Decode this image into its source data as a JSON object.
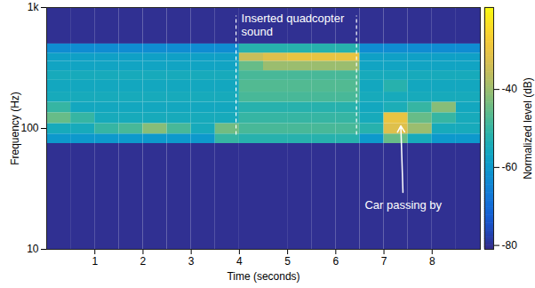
{
  "chart_data": {
    "type": "heatmap",
    "x_label": "Time (seconds)",
    "y_label": "Frequency (Hz)",
    "xlim": [
      0,
      9
    ],
    "xticks": [
      1,
      2,
      3,
      4,
      5,
      6,
      7,
      8
    ],
    "ylim": [
      10,
      1000
    ],
    "yticks": [
      10,
      100,
      {
        "value": 1000,
        "label": "1k"
      }
    ],
    "log": "y",
    "time_edges": [
      0,
      0.5,
      1,
      1.5,
      2,
      2.5,
      3,
      3.5,
      4,
      4.5,
      5,
      5.5,
      6,
      6.5,
      7,
      7.5,
      8,
      8.5,
      9
    ],
    "frequency_edges": [
      10,
      75,
      90,
      110,
      135,
      165,
      200,
      250,
      300,
      360,
      420,
      500,
      1000
    ],
    "cells": [
      [
        -80,
        -80,
        -80,
        -80,
        -80,
        -80,
        -80,
        -80,
        -80,
        -80,
        -80,
        -80,
        -80,
        -80,
        -80,
        -80,
        -80,
        -80
      ],
      [
        -60,
        -60,
        -60,
        -60,
        -60,
        -60,
        -60,
        -50,
        -52,
        -52,
        -52,
        -52,
        -52,
        -60,
        -45,
        -55,
        -60,
        -60
      ],
      [
        -55,
        -55,
        -50,
        -48,
        -42,
        -48,
        -55,
        -44,
        -48,
        -48,
        -48,
        -48,
        -48,
        -52,
        -32,
        -40,
        -55,
        -55
      ],
      [
        -45,
        -50,
        -55,
        -55,
        -55,
        -55,
        -55,
        -55,
        -50,
        -50,
        -50,
        -50,
        -50,
        -55,
        -30,
        -45,
        -50,
        -55
      ],
      [
        -50,
        -56,
        -56,
        -56,
        -56,
        -56,
        -56,
        -56,
        -52,
        -52,
        -52,
        -52,
        -52,
        -56,
        -54,
        -50,
        -42,
        -56
      ],
      [
        -55,
        -55,
        -55,
        -55,
        -55,
        -55,
        -55,
        -55,
        -48,
        -48,
        -48,
        -48,
        -48,
        -55,
        -55,
        -55,
        -55,
        -55
      ],
      [
        -56,
        -56,
        -56,
        -56,
        -56,
        -56,
        -56,
        -56,
        -47,
        -47,
        -47,
        -47,
        -47,
        -56,
        -52,
        -56,
        -56,
        -56
      ],
      [
        -55,
        -55,
        -55,
        -55,
        -55,
        -55,
        -55,
        -55,
        -48,
        -48,
        -48,
        -48,
        -48,
        -55,
        -55,
        -55,
        -55,
        -55
      ],
      [
        -57,
        -57,
        -57,
        -57,
        -57,
        -57,
        -57,
        -57,
        -45,
        -40,
        -40,
        -40,
        -40,
        -57,
        -57,
        -57,
        -57,
        -57
      ],
      [
        -58,
        -58,
        -58,
        -58,
        -58,
        -58,
        -58,
        -58,
        -35,
        -32,
        -30,
        -30,
        -30,
        -58,
        -58,
        -58,
        -58,
        -58
      ],
      [
        -63,
        -63,
        -63,
        -63,
        -63,
        -63,
        -63,
        -63,
        -52,
        -52,
        -52,
        -52,
        -52,
        -63,
        -63,
        -63,
        -63,
        -63
      ],
      [
        -80,
        -80,
        -80,
        -80,
        -80,
        -80,
        -80,
        -80,
        -80,
        -80,
        -80,
        -80,
        -80,
        -80,
        -80,
        -80,
        -80,
        -80
      ]
    ],
    "colorbar": {
      "label": "Normalized level (dB)",
      "range": [
        -81,
        -19
      ],
      "ticks": [
        -40,
        -60,
        -80
      ]
    },
    "annotations": [
      {
        "text": "Inserted quadcopter\nsound",
        "x_span": [
          3.93,
          6.43
        ],
        "y_span": [
          88,
          850
        ]
      },
      {
        "text": "Car passing by",
        "x": 7.35,
        "y": 105,
        "label_x": 7.4,
        "label_y": 25
      }
    ]
  }
}
